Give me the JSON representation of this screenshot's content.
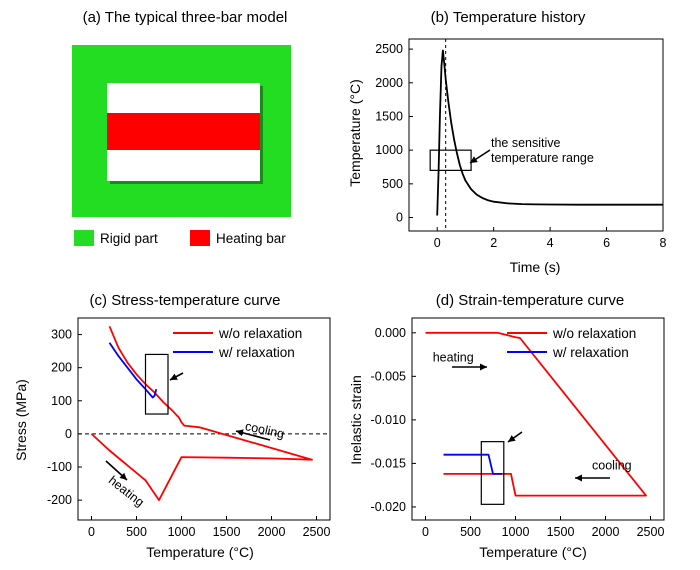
{
  "panel_a": {
    "title": "(a) The typical three-bar model",
    "colors": {
      "rigid": "#22dd22",
      "heating": "#ff0000",
      "inner": "#ffffff",
      "shadow": "#1a8a1a"
    },
    "legend": [
      {
        "label": "Rigid part",
        "color": "#22dd22"
      },
      {
        "label": "Heating bar",
        "color": "#ff0000"
      }
    ]
  },
  "chart_data": [
    {
      "id": "b",
      "type": "line",
      "title": "(b) Temperature history",
      "xlabel": "Time (s)",
      "ylabel": "Temperature (°C)",
      "xlim": [
        -1,
        8
      ],
      "ylim": [
        -200,
        2650
      ],
      "xticks": [
        0,
        2,
        4,
        6,
        8
      ],
      "yticks": [
        0,
        500,
        1000,
        1500,
        2000,
        2500
      ],
      "series": [
        {
          "color": "#000000",
          "x": [
            0,
            0.05,
            0.1,
            0.15,
            0.2,
            0.25,
            0.3,
            0.4,
            0.5,
            0.6,
            0.7,
            0.8,
            0.9,
            1.0,
            1.2,
            1.4,
            1.6,
            1.8,
            2.0,
            2.5,
            3.0,
            3.5,
            4,
            5,
            6,
            7,
            8
          ],
          "y": [
            30,
            700,
            1550,
            2250,
            2480,
            2280,
            2050,
            1700,
            1400,
            1150,
            950,
            780,
            650,
            550,
            420,
            340,
            290,
            255,
            235,
            210,
            200,
            195,
            193,
            191,
            190,
            190,
            190
          ]
        }
      ],
      "vline_x": 0.3,
      "box": {
        "x": [
          -0.25,
          1.2
        ],
        "y": [
          700,
          1000
        ]
      },
      "annotation": [
        "the sensitive",
        "temperature range"
      ]
    },
    {
      "id": "c",
      "type": "line",
      "title": "(c) Stress-temperature curve",
      "xlabel": "Temperature (°C)",
      "ylabel": "Stress (MPa)",
      "xlim": [
        -150,
        2650
      ],
      "ylim": [
        -260,
        350
      ],
      "xticks": [
        0,
        500,
        1000,
        1500,
        2000,
        2500
      ],
      "yticks": [
        -200,
        -100,
        0,
        100,
        200,
        300
      ],
      "series": [
        {
          "name": "w/o relaxation",
          "color": "#ff0000",
          "x": [
            0,
            200,
            400,
            600,
            750,
            1000,
            1500,
            2000,
            2450,
            1200,
            1030,
            1000,
            970,
            950,
            900,
            800,
            700,
            600,
            500,
            400,
            300,
            200
          ],
          "y": [
            0,
            -50,
            -95,
            -140,
            -200,
            -70,
            -72,
            -74,
            -78,
            20,
            25,
            35,
            50,
            55,
            70,
            95,
            125,
            150,
            180,
            215,
            260,
            325
          ]
        },
        {
          "name": "w/ relaxation",
          "color": "#0000ff",
          "x": [
            200,
            300,
            400,
            500,
            600,
            680,
            700,
            720
          ],
          "y": [
            275,
            235,
            200,
            165,
            135,
            110,
            115,
            135
          ]
        }
      ],
      "hline_y": 0,
      "box": {
        "x": [
          600,
          850
        ],
        "y": [
          60,
          240
        ]
      },
      "annotations": [
        {
          "text": "cooling",
          "x": 1700,
          "y": 12
        },
        {
          "text": "heating",
          "x": 180,
          "y": -145
        }
      ]
    },
    {
      "id": "d",
      "type": "line",
      "title": "(d) Strain-temperature curve",
      "xlabel": "Temperature (°C)",
      "ylabel": "Inelastic strain",
      "xlim": [
        -150,
        2650
      ],
      "ylim": [
        -0.0215,
        0.0017
      ],
      "xticks": [
        0,
        500,
        1000,
        1500,
        2000,
        2500
      ],
      "yticks": [
        0.0,
        -0.005,
        -0.01,
        -0.015,
        -0.02
      ],
      "ytick_labels": [
        "0.000",
        "-0.005",
        "-0.010",
        "-0.015",
        "-0.020"
      ],
      "series": [
        {
          "name": "w/o relaxation",
          "color": "#ff0000",
          "x": [
            0,
            800,
            1000,
            1050,
            2450,
            1000,
            950,
            900,
            700,
            200
          ],
          "y": [
            0,
            0,
            -0.0005,
            -0.0006,
            -0.0187,
            -0.0187,
            -0.0162,
            -0.0162,
            -0.0162,
            -0.0162
          ]
        },
        {
          "name": "w/ relaxation",
          "color": "#0000ff",
          "x": [
            200,
            500,
            700,
            750,
            800,
            850
          ],
          "y": [
            -0.014,
            -0.014,
            -0.014,
            -0.0162,
            -0.0162,
            -0.0162
          ]
        }
      ],
      "box": {
        "x": [
          620,
          870
        ],
        "y": [
          -0.0197,
          -0.0125
        ]
      },
      "annotations": [
        {
          "text": "heating",
          "x": 80,
          "y": -0.0033
        },
        {
          "text": "cooling",
          "x": 1850,
          "y": -0.0157
        }
      ]
    }
  ]
}
